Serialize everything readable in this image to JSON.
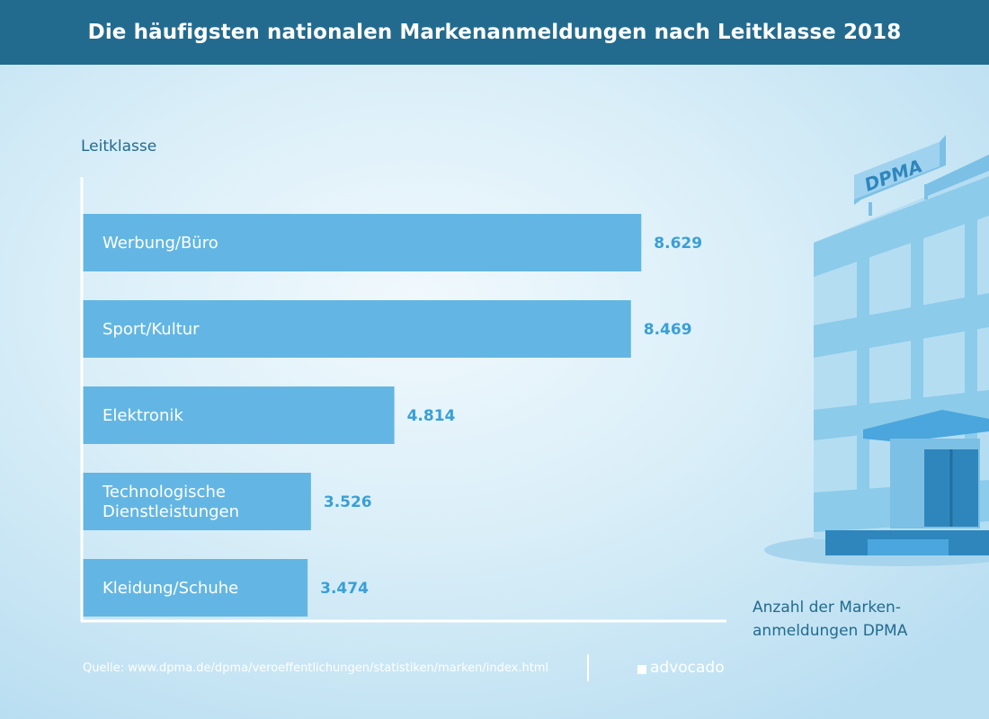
{
  "header": {
    "title": "Die häufigsten nationalen Markenanmeldungen nach Leitklasse 2018"
  },
  "chart_data": {
    "type": "bar",
    "orientation": "horizontal",
    "title": "Die häufigsten nationalen Markenanmeldungen nach Leitklasse 2018",
    "ylabel": "Leitklasse",
    "xlabel_lines": [
      "Anzahl der Marken-",
      "anmeldungen DPMA"
    ],
    "categories": [
      [
        "Werbung/Büro"
      ],
      [
        "Sport/Kultur"
      ],
      [
        "Elektronik"
      ],
      [
        "Technologische",
        "Dienstleistungen"
      ],
      [
        "Kleidung/Schuhe"
      ]
    ],
    "values": [
      8629,
      8469,
      4814,
      3526,
      3474
    ],
    "value_labels": [
      "8.629",
      "8.469",
      "4.814",
      "3.526",
      "3.474"
    ],
    "xlim": [
      0,
      10000
    ],
    "grid": false,
    "bar_color": "#63b6e3",
    "value_color": "#3a9fd6",
    "axis_color": "#ffffff"
  },
  "building": {
    "sign": "DPMA"
  },
  "footer": {
    "source": "Quelle: www.dpma.de/dpma/veroeffentlichungen/statistiken/marken/index.html",
    "logo": "advocado"
  }
}
